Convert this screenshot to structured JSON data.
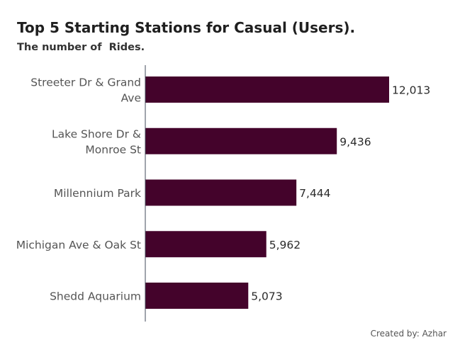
{
  "title": "Top 5 Starting Stations for Casual (Users).",
  "subtitle": "The number of  Rides.",
  "footer": "Created by: Azhar",
  "colors": {
    "bar": "#44032b",
    "axis": "#40485a",
    "label": "#555555",
    "value": "#2b2b2b"
  },
  "chart_data": {
    "type": "bar",
    "orientation": "horizontal",
    "categories": [
      [
        "Streeter Dr & Grand",
        "Ave"
      ],
      [
        "Lake Shore Dr &",
        "Monroe St"
      ],
      [
        "Millennium Park"
      ],
      [
        "Michigan Ave & Oak St"
      ],
      [
        "Shedd Aquarium"
      ]
    ],
    "values": [
      12013,
      9436,
      7444,
      5962,
      5073
    ],
    "value_labels": [
      "12,013",
      "9,436",
      "7,444",
      "5,962",
      "5,073"
    ],
    "xlim": [
      0,
      12013
    ],
    "title": "Top 5 Starting Stations for Casual (Users).",
    "subtitle": "The number of  Rides.",
    "grid": false,
    "legend": "none"
  }
}
